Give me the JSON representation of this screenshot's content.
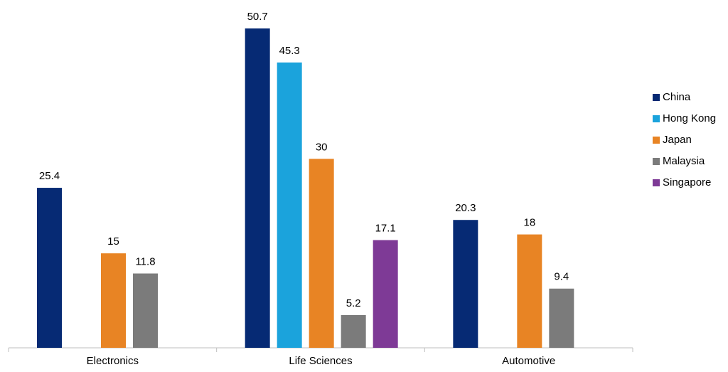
{
  "chart_data": {
    "type": "bar",
    "categories": [
      "Electronics",
      "Life Sciences",
      "Automotive"
    ],
    "series": [
      {
        "name": "China",
        "color": "#062a74",
        "values": [
          25.4,
          50.7,
          20.3
        ]
      },
      {
        "name": "Hong Kong",
        "color": "#1ba3dc",
        "values": [
          null,
          45.3,
          null
        ]
      },
      {
        "name": "Japan",
        "color": "#e88424",
        "values": [
          15,
          30,
          18
        ]
      },
      {
        "name": "Malaysia",
        "color": "#7b7b7b",
        "values": [
          11.8,
          5.2,
          9.4
        ]
      },
      {
        "name": "Singapore",
        "color": "#7e3a96",
        "values": [
          null,
          17.1,
          null
        ]
      }
    ],
    "legend": "right"
  }
}
